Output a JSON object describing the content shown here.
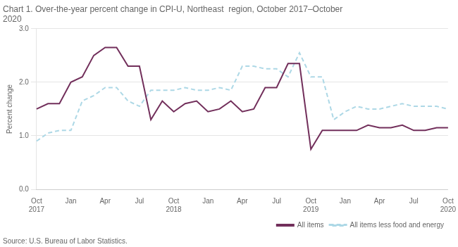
{
  "chart_data": {
    "type": "line",
    "title": "Chart 1. Over-the-year percent change in CPI-U, Northeast  region, October 2017–October\n2020",
    "ylabel": "Percent change",
    "annotations": [
      "Source: U.S. Bureau of Labor Statistics."
    ],
    "categories": [
      "Oct\n2017",
      null,
      null,
      "Jan",
      null,
      null,
      "Apr",
      null,
      null,
      "Jul",
      null,
      null,
      "Oct\n2018",
      null,
      null,
      "Jan",
      null,
      null,
      "Apr",
      null,
      null,
      "Jul",
      null,
      null,
      "Oct\n2019",
      null,
      null,
      "Jan",
      null,
      null,
      "Apr",
      null,
      null,
      "Jul",
      null,
      null,
      "Oct\n2020"
    ],
    "series": [
      {
        "name": "All items",
        "color": "#722F5B",
        "line_style": "solid",
        "values": [
          1.5,
          1.6,
          1.6,
          2.0,
          2.1,
          2.5,
          2.65,
          2.65,
          2.3,
          2.3,
          1.3,
          1.65,
          1.45,
          1.6,
          1.65,
          1.45,
          1.5,
          1.65,
          1.45,
          1.5,
          1.9,
          1.9,
          2.35,
          2.35,
          0.75,
          1.1,
          1.1,
          1.1,
          1.1,
          1.2,
          1.15,
          1.15,
          1.2,
          1.1,
          1.1,
          1.15,
          1.15
        ]
      },
      {
        "name": "All items less food and energy",
        "color": "#ADD8E6",
        "line_style": "dashed",
        "values": [
          0.9,
          1.05,
          1.1,
          1.1,
          1.65,
          1.75,
          1.9,
          1.9,
          1.65,
          1.55,
          1.85,
          1.85,
          1.85,
          1.9,
          1.85,
          1.85,
          1.9,
          1.85,
          2.3,
          2.3,
          2.25,
          2.25,
          2.1,
          2.55,
          2.1,
          2.1,
          1.3,
          1.45,
          1.55,
          1.5,
          1.5,
          1.55,
          1.6,
          1.55,
          1.55,
          1.55,
          1.5
        ]
      }
    ],
    "ylim": [
      0.0,
      3.0
    ],
    "yticks": [
      {
        "value": 0,
        "label": "0.0"
      },
      {
        "value": 1,
        "label": "1.0"
      },
      {
        "value": 2,
        "label": "2.0"
      },
      {
        "value": 3,
        "label": "3.0"
      }
    ],
    "grid": "y",
    "legend": "lower right"
  }
}
